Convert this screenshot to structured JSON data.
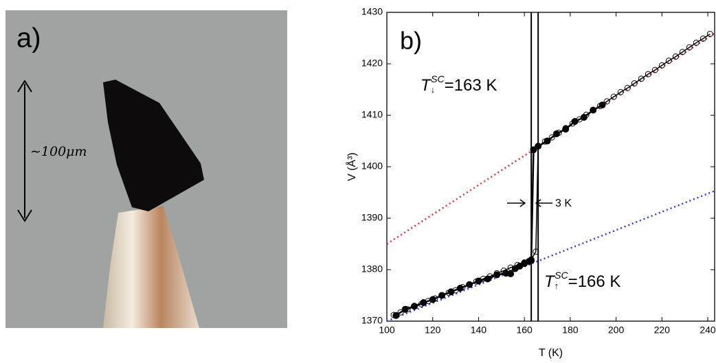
{
  "panel_a": {
    "label": "a)",
    "scale_label": "∼100μm"
  },
  "chart_data": {
    "type": "line",
    "label": "b)",
    "xlabel": "T (K)",
    "ylabel": "V (Å³)",
    "xlim": [
      100,
      243
    ],
    "ylim": [
      1370,
      1430
    ],
    "xticks": [
      100,
      120,
      140,
      160,
      180,
      200,
      220,
      240
    ],
    "yticks": [
      1370,
      1380,
      1390,
      1400,
      1410,
      1420,
      1430
    ],
    "vlines": [
      163,
      166
    ],
    "annotation_down": {
      "symbol": "T",
      "sub": "↓",
      "sup": "SC",
      "text": "=163 K"
    },
    "annotation_up": {
      "symbol": "T",
      "sub": "↑",
      "sup": "SC",
      "text": "=166 K"
    },
    "width_label": "3 K",
    "series": [
      {
        "color": "#e0303a",
        "marker": "none",
        "dash": "dot",
        "x": [
          100,
          243
        ],
        "values": [
          1385,
          1425.9
        ]
      },
      {
        "color": "#2a3adf",
        "marker": "none",
        "dash": "dot",
        "x": [
          100,
          243
        ],
        "values": [
          1370,
          1395.3
        ]
      },
      {
        "color": "#000000",
        "marker": "open",
        "dash": "solid",
        "x": [
          103,
          106,
          109,
          112,
          115,
          118,
          121,
          124,
          127,
          130,
          133,
          136,
          139,
          142,
          145,
          148,
          151,
          154,
          157,
          160,
          163,
          165,
          166,
          169,
          172,
          175,
          178,
          181,
          184,
          187,
          190,
          193,
          196,
          199,
          202,
          205,
          208,
          211,
          214,
          217,
          220,
          223,
          226,
          229,
          232,
          235,
          238,
          241
        ],
        "values": [
          1371.2,
          1371.7,
          1372.3,
          1372.8,
          1373.3,
          1373.9,
          1374.4,
          1375.0,
          1375.5,
          1376.0,
          1376.6,
          1377.1,
          1377.7,
          1378.2,
          1378.7,
          1379.3,
          1379.8,
          1380.4,
          1380.9,
          1381.4,
          1382.0,
          1383.5,
          1404.0,
          1404.9,
          1405.7,
          1406.6,
          1407.5,
          1408.4,
          1409.2,
          1410.1,
          1411.0,
          1411.8,
          1412.7,
          1413.6,
          1414.5,
          1415.3,
          1416.2,
          1417.1,
          1418.0,
          1418.8,
          1419.7,
          1420.6,
          1421.4,
          1422.3,
          1423.2,
          1424.1,
          1424.9,
          1425.8
        ]
      },
      {
        "color": "#000000",
        "marker": "filled",
        "dash": "solid",
        "x": [
          104,
          108,
          112,
          116,
          120,
          124,
          128,
          132,
          136,
          140,
          144,
          148,
          152,
          154,
          156,
          158,
          160,
          162,
          163,
          164,
          166,
          170,
          174,
          178,
          182,
          186,
          190,
          194
        ],
        "values": [
          1371.1,
          1372.3,
          1372.9,
          1373.6,
          1374.2,
          1375.0,
          1375.7,
          1376.4,
          1377.1,
          1377.8,
          1378.2,
          1379.0,
          1379.3,
          1379.2,
          1380.2,
          1380.7,
          1381.2,
          1381.6,
          1381.8,
          1403.3,
          1404.0,
          1405.0,
          1406.4,
          1407.3,
          1408.8,
          1409.6,
          1411.0,
          1412.0
        ]
      }
    ]
  }
}
